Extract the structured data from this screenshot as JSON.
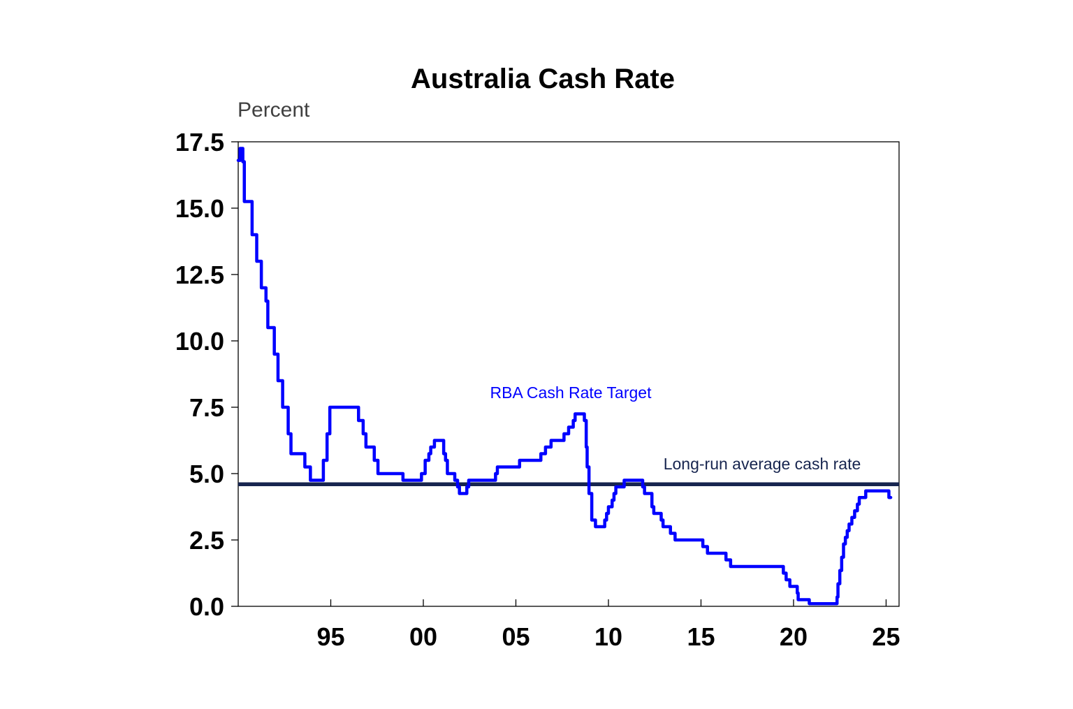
{
  "chart_data": {
    "type": "line",
    "title": "Australia Cash Rate",
    "ylabel": "Percent",
    "xlabel": "",
    "xlim": [
      1990.0,
      2025.7
    ],
    "ylim": [
      0,
      17.5
    ],
    "y_ticks": [
      "0.0",
      "2.5",
      "5.0",
      "7.5",
      "10.0",
      "12.5",
      "15.0",
      "17.5"
    ],
    "y_tick_values": [
      0,
      2.5,
      5,
      7.5,
      10,
      12.5,
      15,
      17.5
    ],
    "x_ticks": [
      "95",
      "00",
      "05",
      "10",
      "15",
      "20",
      "25"
    ],
    "x_tick_values": [
      1995,
      2000,
      2005,
      2010,
      2015,
      2020,
      2025
    ],
    "grid": false,
    "series": [
      {
        "name": "RBA Cash Rate Target",
        "color": "#0000ff",
        "step": true,
        "points": [
          [
            1990.0,
            16.8
          ],
          [
            1990.1,
            17.25
          ],
          [
            1990.25,
            16.75
          ],
          [
            1990.33,
            15.25
          ],
          [
            1990.75,
            14.0
          ],
          [
            1991.0,
            13.0
          ],
          [
            1991.25,
            12.0
          ],
          [
            1991.5,
            11.5
          ],
          [
            1991.6,
            10.5
          ],
          [
            1991.95,
            9.5
          ],
          [
            1992.15,
            8.5
          ],
          [
            1992.4,
            7.5
          ],
          [
            1992.7,
            6.5
          ],
          [
            1992.85,
            5.75
          ],
          [
            1993.6,
            5.25
          ],
          [
            1993.9,
            4.75
          ],
          [
            1994.6,
            5.5
          ],
          [
            1994.8,
            6.5
          ],
          [
            1994.95,
            7.5
          ],
          [
            1996.5,
            7.0
          ],
          [
            1996.75,
            6.5
          ],
          [
            1996.9,
            6.0
          ],
          [
            1997.35,
            5.5
          ],
          [
            1997.55,
            5.0
          ],
          [
            1998.9,
            4.75
          ],
          [
            1999.9,
            5.0
          ],
          [
            2000.1,
            5.5
          ],
          [
            2000.3,
            5.75
          ],
          [
            2000.4,
            6.0
          ],
          [
            2000.6,
            6.25
          ],
          [
            2001.1,
            5.75
          ],
          [
            2001.2,
            5.5
          ],
          [
            2001.3,
            5.0
          ],
          [
            2001.7,
            4.75
          ],
          [
            2001.85,
            4.5
          ],
          [
            2001.95,
            4.25
          ],
          [
            2002.35,
            4.5
          ],
          [
            2002.45,
            4.75
          ],
          [
            2003.9,
            5.0
          ],
          [
            2004.0,
            5.25
          ],
          [
            2005.2,
            5.5
          ],
          [
            2006.35,
            5.75
          ],
          [
            2006.6,
            6.0
          ],
          [
            2006.9,
            6.25
          ],
          [
            2007.6,
            6.5
          ],
          [
            2007.85,
            6.75
          ],
          [
            2008.1,
            7.0
          ],
          [
            2008.2,
            7.25
          ],
          [
            2008.7,
            7.0
          ],
          [
            2008.8,
            6.0
          ],
          [
            2008.85,
            5.25
          ],
          [
            2008.95,
            4.25
          ],
          [
            2009.1,
            3.25
          ],
          [
            2009.3,
            3.0
          ],
          [
            2009.8,
            3.25
          ],
          [
            2009.9,
            3.5
          ],
          [
            2010.0,
            3.75
          ],
          [
            2010.2,
            4.0
          ],
          [
            2010.3,
            4.25
          ],
          [
            2010.4,
            4.5
          ],
          [
            2010.85,
            4.75
          ],
          [
            2011.85,
            4.5
          ],
          [
            2011.95,
            4.25
          ],
          [
            2012.35,
            3.75
          ],
          [
            2012.45,
            3.5
          ],
          [
            2012.85,
            3.25
          ],
          [
            2012.95,
            3.0
          ],
          [
            2013.35,
            2.75
          ],
          [
            2013.6,
            2.5
          ],
          [
            2015.1,
            2.25
          ],
          [
            2015.35,
            2.0
          ],
          [
            2016.35,
            1.75
          ],
          [
            2016.6,
            1.5
          ],
          [
            2019.45,
            1.25
          ],
          [
            2019.6,
            1.0
          ],
          [
            2019.8,
            0.75
          ],
          [
            2020.2,
            0.5
          ],
          [
            2020.25,
            0.25
          ],
          [
            2020.85,
            0.1
          ],
          [
            2022.35,
            0.35
          ],
          [
            2022.4,
            0.85
          ],
          [
            2022.5,
            1.35
          ],
          [
            2022.6,
            1.85
          ],
          [
            2022.7,
            2.35
          ],
          [
            2022.8,
            2.6
          ],
          [
            2022.9,
            2.85
          ],
          [
            2023.0,
            3.1
          ],
          [
            2023.15,
            3.35
          ],
          [
            2023.3,
            3.6
          ],
          [
            2023.45,
            3.85
          ],
          [
            2023.55,
            4.1
          ],
          [
            2023.9,
            4.35
          ],
          [
            2025.15,
            4.1
          ],
          [
            2025.25,
            4.1
          ]
        ]
      },
      {
        "name": "Long-run average cash rate",
        "color": "#17254f",
        "x": [
          1990.0,
          2025.7
        ],
        "y": [
          4.6,
          4.6
        ]
      }
    ],
    "annotations": [
      {
        "text": "RBA Cash Rate Target",
        "color": "#0000ff"
      },
      {
        "text": "Long-run average cash rate",
        "color": "#17254f"
      }
    ]
  }
}
